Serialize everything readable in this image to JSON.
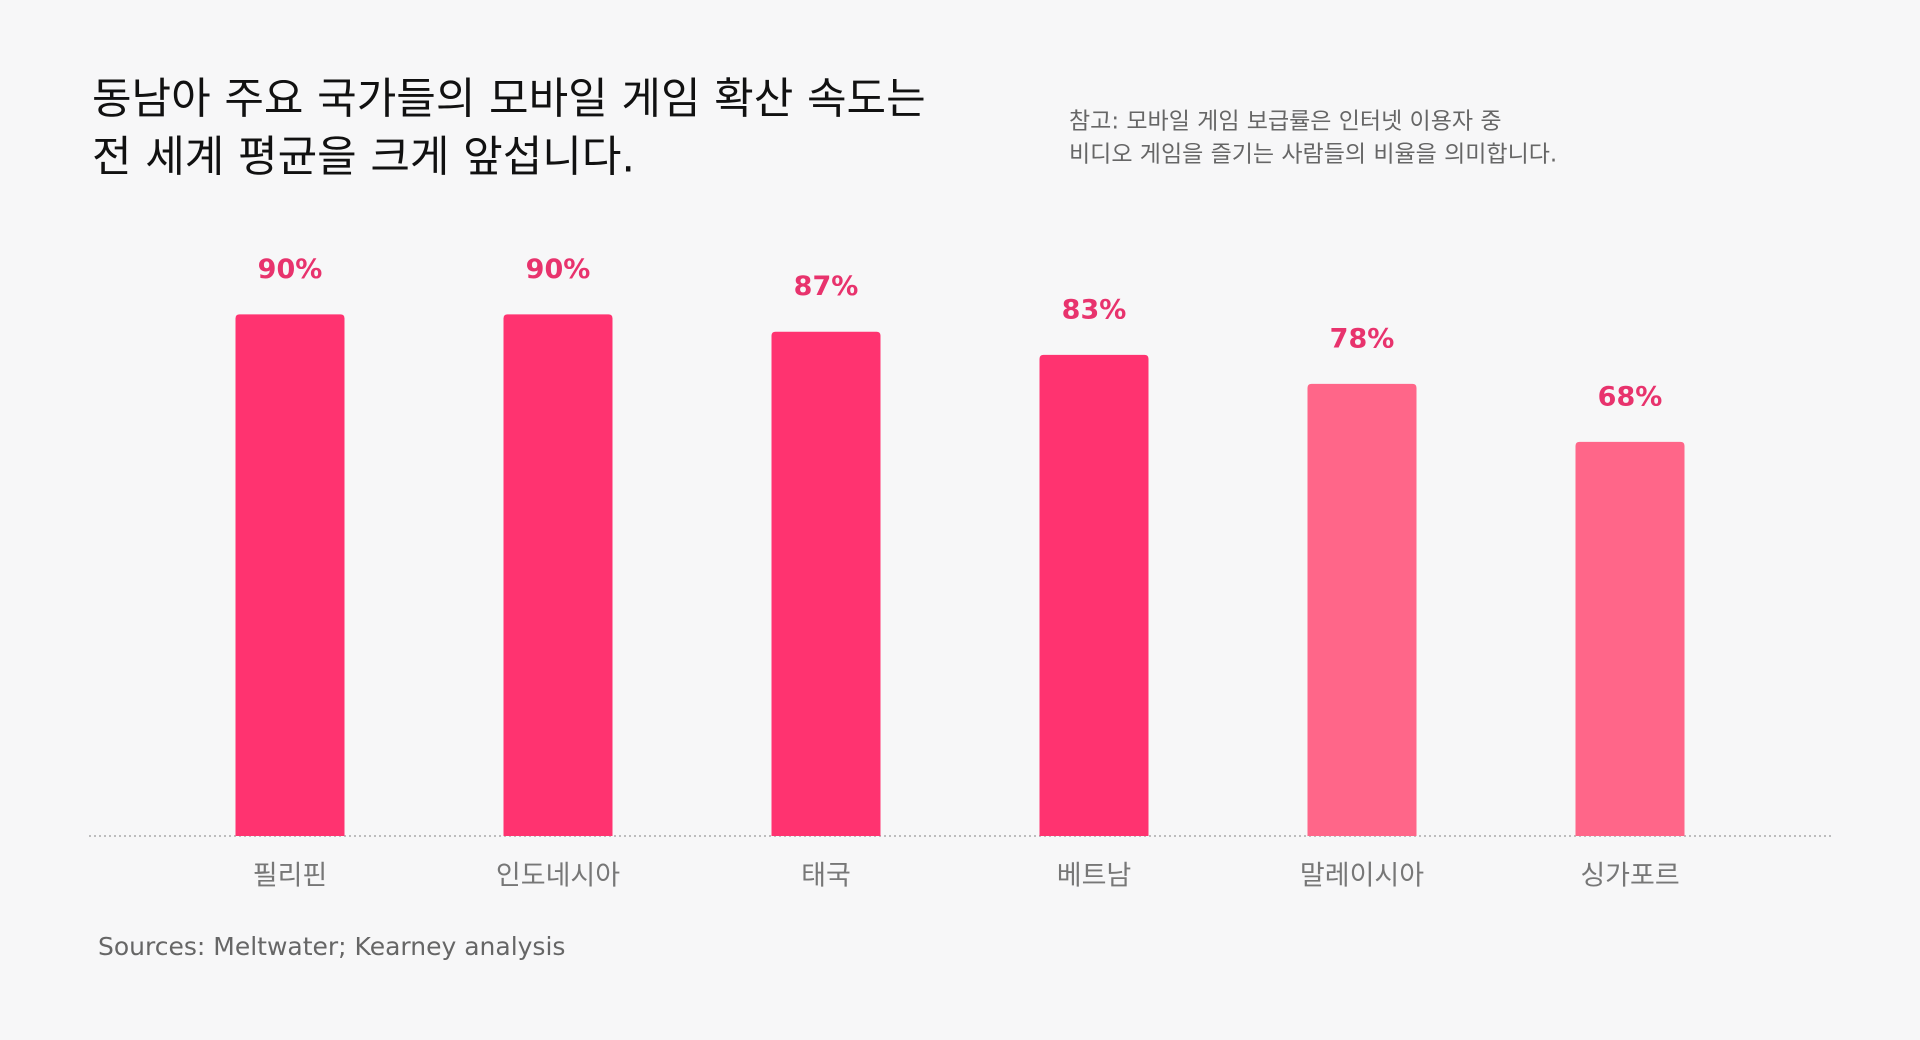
{
  "chart_data": {
    "type": "bar",
    "title": [
      "동남아 주요 국가들의 모바일 게임 확산 속도는",
      "전 세계 평균을 크게 앞섭니다."
    ],
    "note": [
      "참고: 모바일 게임 보급률은 인터넷 이용자 중",
      "비디오 게임을 즐기는 사람들의 비율을 의미합니다."
    ],
    "categories": [
      "필리핀",
      "인도네시아",
      "태국",
      "베트남",
      "말레이시아",
      "싱가포르"
    ],
    "values": [
      90,
      90,
      87,
      83,
      78,
      68
    ],
    "value_labels": [
      "90%",
      "90%",
      "87%",
      "83%",
      "78%",
      "68%"
    ],
    "colors": [
      "#ff3370",
      "#ff3370",
      "#ff3370",
      "#ff3370",
      "#ff6689",
      "#ff6689"
    ],
    "label_color": "#e8336d",
    "source": "Sources: Meltwater; Kearney analysis"
  }
}
